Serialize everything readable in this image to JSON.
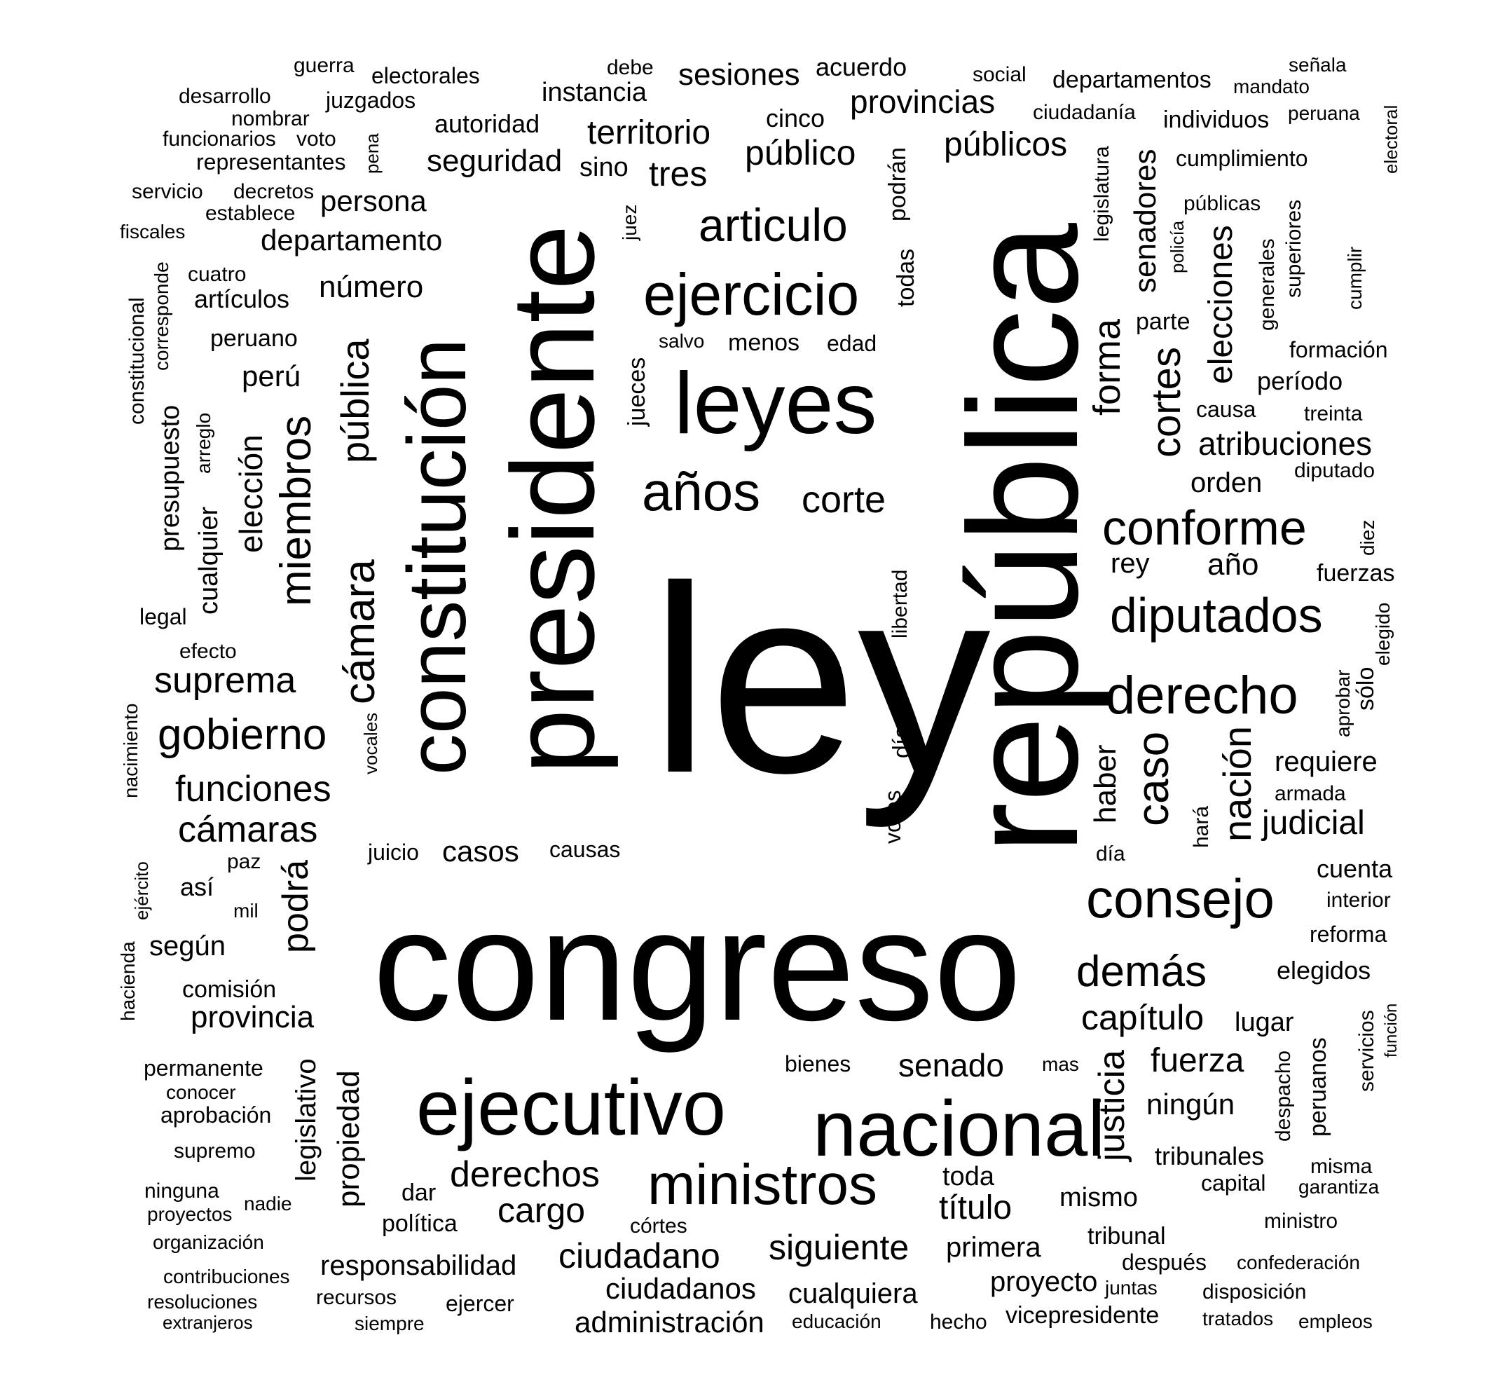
{
  "text_color": "#000000",
  "background_color": "#ffffff",
  "words": [
    "ley",
    "congreso",
    "república",
    "presidente",
    "constitución",
    "leyes",
    "ejecutivo",
    "nacional",
    "ministros",
    "ejercicio",
    "articulo",
    "años",
    "corte",
    "cámara",
    "pública",
    "miembros",
    "elección",
    "diputados",
    "conforme",
    "derecho",
    "consejo",
    "demás",
    "caso",
    "nación",
    "cortes",
    "elecciones",
    "forma",
    "senadores",
    "gobierno",
    "suprema",
    "funciones",
    "cámaras",
    "podrá",
    "según",
    "comisión",
    "provincia",
    "territorio",
    "provincias",
    "público",
    "públicos",
    "tres",
    "sesiones",
    "seguridad",
    "instancia",
    "departamento",
    "persona",
    "número",
    "judicial",
    "atribuciones",
    "capítulo",
    "fuerza",
    "ningún",
    "senado",
    "justicia",
    "derechos",
    "cargo",
    "título",
    "toda",
    "mismo",
    "siguiente",
    "cualquiera",
    "primera",
    "proyecto",
    "ciudadano",
    "ciudadanos",
    "administración",
    "responsabilidad",
    "vicepresidente",
    "casos",
    "causas",
    "juicio",
    "propiedad",
    "legislativo",
    "dar",
    "política",
    "córtes",
    "recursos",
    "ejercer",
    "siempre",
    "educación",
    "hecho",
    "tribunal",
    "después",
    "juntas",
    "disposición",
    "tratados",
    "empleos",
    "confederación",
    "ministro",
    "capital",
    "garantiza",
    "misma",
    "tribunales",
    "lugar",
    "despacho",
    "peruanos",
    "servicios",
    "función",
    "elegidos",
    "reforma",
    "interior",
    "cuenta",
    "haber",
    "hará",
    "día",
    "requiere",
    "armada",
    "fuerzas",
    "sólo",
    "aprobar",
    "elegido",
    "diez",
    "año",
    "rey",
    "orden",
    "diputado",
    "treinta",
    "causa",
    "período",
    "formación",
    "parte",
    "generales",
    "superiores",
    "cumplir",
    "policía",
    "públicas",
    "legislatura",
    "cumplimiento",
    "electoral",
    "peruana",
    "individuos",
    "mandato",
    "señala",
    "departamentos",
    "ciudadanía",
    "social",
    "acuerdo",
    "cinco",
    "podrán",
    "todas",
    "juez",
    "autoridad",
    "debe",
    "sino",
    "guerra",
    "electorales",
    "juzgados",
    "desarrollo",
    "nombrar",
    "funcionarios",
    "voto",
    "representantes",
    "pena",
    "servicio",
    "decretos",
    "establece",
    "fiscales",
    "cuatro",
    "corresponde",
    "constitucional",
    "artículos",
    "peruano",
    "perú",
    "presupuesto",
    "arreglo",
    "cualquier",
    "legal",
    "efecto",
    "nacimiento",
    "vocales",
    "paz",
    "así",
    "mil",
    "ejército",
    "hacienda",
    "permanente",
    "conocer",
    "aprobación",
    "supremo",
    "ninguna",
    "proyectos",
    "nadie",
    "organización",
    "contribuciones",
    "resoluciones",
    "extranjeros",
    "bienes",
    "mas",
    "salvo",
    "menos",
    "edad",
    "jueces",
    "libertad",
    "días",
    "votos"
  ]
}
